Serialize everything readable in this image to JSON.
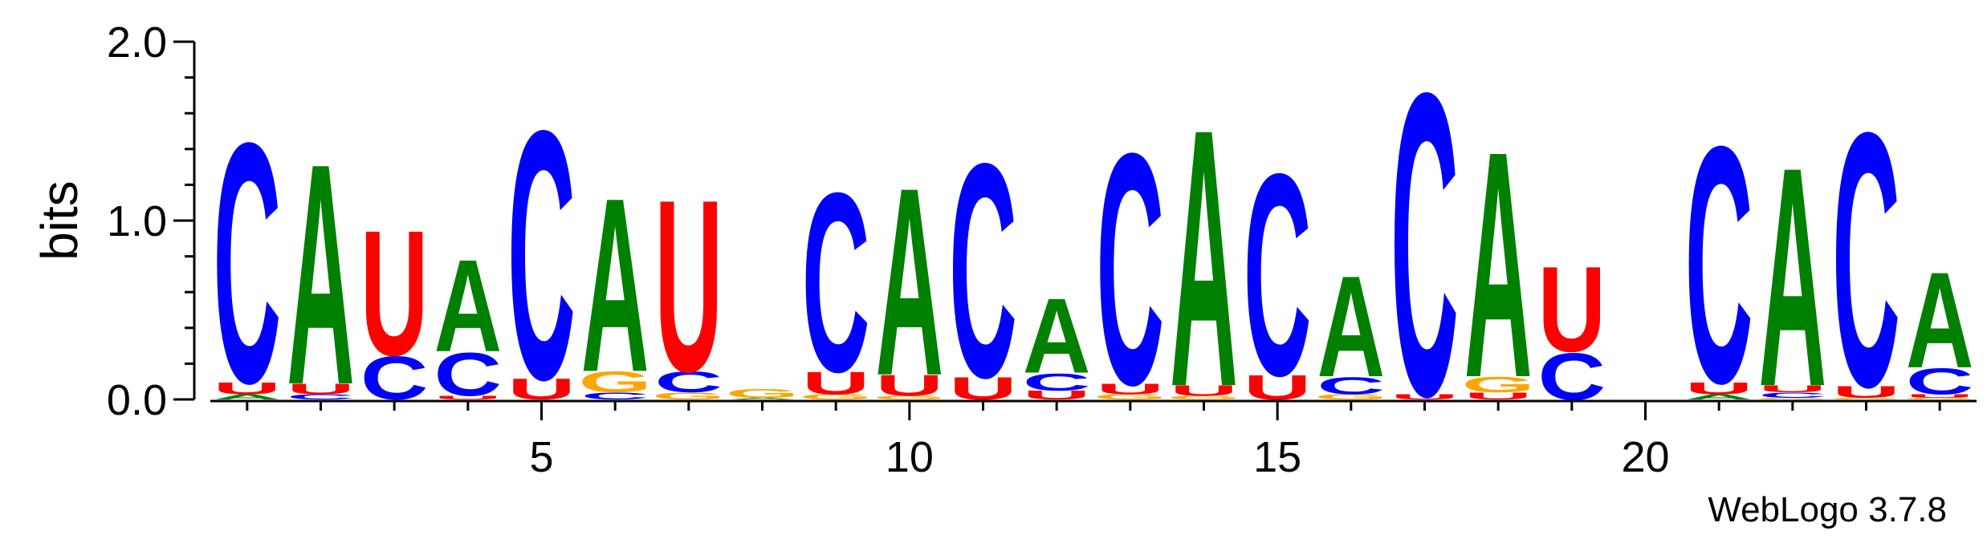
{
  "chart_data": {
    "type": "sequence-logo",
    "ylabel": "bits",
    "ylim": [
      0,
      2.0
    ],
    "y_ticks": [
      {
        "value": 0.0,
        "label": "0.0"
      },
      {
        "value": 1.0,
        "label": "1.0"
      },
      {
        "value": 2.0,
        "label": "2.0"
      }
    ],
    "y_minor_step": 0.2,
    "x_major_labels": [
      {
        "position": 5,
        "label": "5"
      },
      {
        "position": 10,
        "label": "10"
      },
      {
        "position": 15,
        "label": "15"
      },
      {
        "position": 20,
        "label": "20"
      }
    ],
    "x_range": [
      1,
      24
    ],
    "credit": "WebLogo 3.7.8",
    "colors": {
      "A": "#008000",
      "C": "#0000ff",
      "G": "#ffa500",
      "U": "#ff0000"
    },
    "positions": [
      {
        "pos": 1,
        "stack": [
          [
            "A",
            0.03
          ],
          [
            "U",
            0.07
          ],
          [
            "C",
            1.38
          ]
        ]
      },
      {
        "pos": 2,
        "stack": [
          [
            "C",
            0.03
          ],
          [
            "U",
            0.06
          ],
          [
            "A",
            1.27
          ]
        ]
      },
      {
        "pos": 3,
        "stack": [
          [
            "C",
            0.25
          ],
          [
            "U",
            0.72
          ]
        ]
      },
      {
        "pos": 4,
        "stack": [
          [
            "U",
            0.02
          ],
          [
            "C",
            0.25
          ],
          [
            "A",
            0.53
          ]
        ]
      },
      {
        "pos": 5,
        "stack": [
          [
            "U",
            0.12
          ],
          [
            "C",
            1.43
          ]
        ]
      },
      {
        "pos": 6,
        "stack": [
          [
            "C",
            0.04
          ],
          [
            "G",
            0.12
          ],
          [
            "A",
            1.0
          ]
        ]
      },
      {
        "pos": 7,
        "stack": [
          [
            "G",
            0.04
          ],
          [
            "C",
            0.12
          ],
          [
            "U",
            0.99
          ]
        ]
      },
      {
        "pos": 8,
        "stack": [
          [
            "A",
            0.01
          ],
          [
            "G",
            0.05
          ]
        ]
      },
      {
        "pos": 9,
        "stack": [
          [
            "G",
            0.03
          ],
          [
            "U",
            0.13
          ],
          [
            "C",
            1.03
          ]
        ]
      },
      {
        "pos": 10,
        "stack": [
          [
            "G",
            0.02
          ],
          [
            "U",
            0.12
          ],
          [
            "A",
            1.08
          ]
        ]
      },
      {
        "pos": 11,
        "stack": [
          [
            "U",
            0.13
          ],
          [
            "C",
            1.23
          ]
        ]
      },
      {
        "pos": 12,
        "stack": [
          [
            "U",
            0.05
          ],
          [
            "C",
            0.1
          ],
          [
            "A",
            0.43
          ]
        ]
      },
      {
        "pos": 13,
        "stack": [
          [
            "G",
            0.03
          ],
          [
            "U",
            0.06
          ],
          [
            "C",
            1.33
          ]
        ]
      },
      {
        "pos": 14,
        "stack": [
          [
            "G",
            0.02
          ],
          [
            "U",
            0.06
          ],
          [
            "A",
            1.48
          ]
        ]
      },
      {
        "pos": 15,
        "stack": [
          [
            "U",
            0.14
          ],
          [
            "C",
            1.16
          ]
        ]
      },
      {
        "pos": 16,
        "stack": [
          [
            "G",
            0.03
          ],
          [
            "C",
            0.1
          ],
          [
            "A",
            0.58
          ]
        ]
      },
      {
        "pos": 17,
        "stack": [
          [
            "U",
            0.03
          ],
          [
            "C",
            1.74
          ]
        ]
      },
      {
        "pos": 18,
        "stack": [
          [
            "U",
            0.04
          ],
          [
            "G",
            0.09
          ],
          [
            "A",
            1.3
          ]
        ]
      },
      {
        "pos": 19,
        "stack": [
          [
            "C",
            0.27
          ],
          [
            "U",
            0.49
          ]
        ]
      },
      {
        "pos": 20,
        "stack": []
      },
      {
        "pos": 21,
        "stack": [
          [
            "A",
            0.03
          ],
          [
            "U",
            0.07
          ],
          [
            "C",
            1.36
          ]
        ]
      },
      {
        "pos": 22,
        "stack": [
          [
            "G",
            0.01
          ],
          [
            "C",
            0.03
          ],
          [
            "U",
            0.04
          ],
          [
            "A",
            1.26
          ]
        ]
      },
      {
        "pos": 23,
        "stack": [
          [
            "G",
            0.01
          ],
          [
            "U",
            0.07
          ],
          [
            "C",
            1.46
          ]
        ]
      },
      {
        "pos": 24,
        "stack": [
          [
            "G",
            0.01
          ],
          [
            "U",
            0.02
          ],
          [
            "C",
            0.15
          ],
          [
            "A",
            0.55
          ]
        ]
      }
    ]
  }
}
